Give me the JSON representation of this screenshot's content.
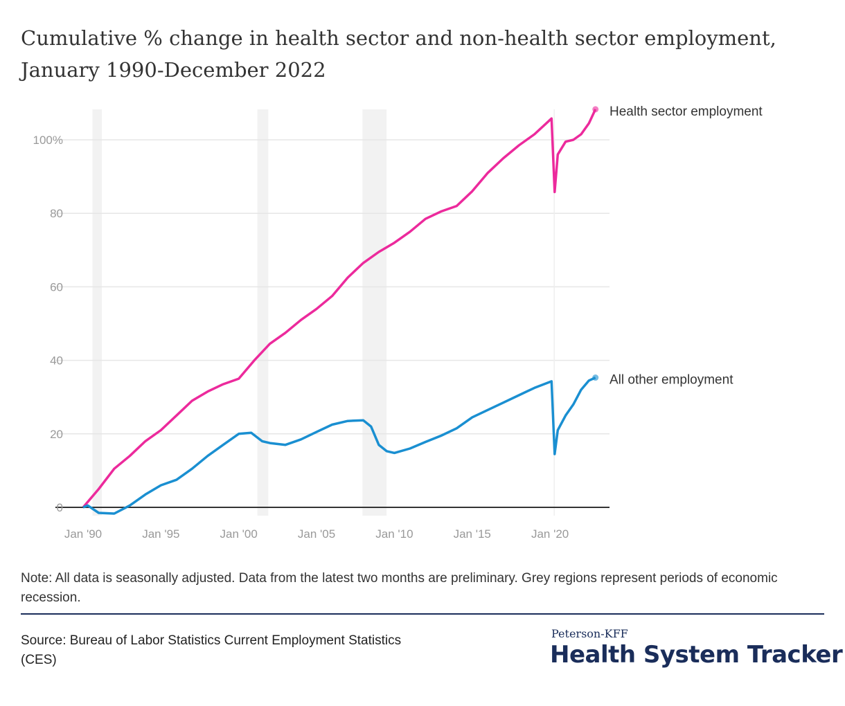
{
  "chart_data": {
    "type": "line",
    "title": "Cumulative % change in health sector and non-health sector employment, January 1990-December 2022",
    "xlabel": "",
    "ylabel": "",
    "xlim": [
      1990,
      2023
    ],
    "ylim": [
      0,
      110
    ],
    "grid": true,
    "legend": "inline-right",
    "x_ticks": [
      {
        "value": 1990,
        "label": "Jan '90"
      },
      {
        "value": 1995,
        "label": "Jan '95"
      },
      {
        "value": 2000,
        "label": "Jan '00"
      },
      {
        "value": 2005,
        "label": "Jan '05"
      },
      {
        "value": 2010,
        "label": "Jan '10"
      },
      {
        "value": 2015,
        "label": "Jan '15"
      },
      {
        "value": 2020,
        "label": "Jan '20"
      }
    ],
    "y_ticks": [
      {
        "value": 0,
        "label": "0"
      },
      {
        "value": 20,
        "label": "20"
      },
      {
        "value": 40,
        "label": "40"
      },
      {
        "value": 60,
        "label": "60"
      },
      {
        "value": 80,
        "label": "80"
      },
      {
        "value": 100,
        "label": "100%"
      }
    ],
    "recessions": [
      [
        1990.6,
        1991.2
      ],
      [
        2001.2,
        2001.9
      ],
      [
        2007.95,
        2009.5
      ]
    ],
    "series": [
      {
        "name": "Health sector employment",
        "color": "#ec2a9c",
        "x": [
          1990,
          1991,
          1992,
          1993,
          1994,
          1995,
          1996,
          1997,
          1998,
          1999,
          2000,
          2001,
          2002,
          2003,
          2004,
          2005,
          2006,
          2007,
          2008,
          2009,
          2010,
          2011,
          2012,
          2013,
          2014,
          2015,
          2016,
          2017,
          2018,
          2019,
          2020.1,
          2020.3,
          2020.5,
          2021,
          2021.5,
          2022,
          2022.5,
          2022.92
        ],
        "y": [
          0,
          5,
          10.5,
          14,
          18,
          21,
          25,
          29,
          31.5,
          33.5,
          35,
          40,
          44.5,
          47.5,
          51,
          54,
          57.5,
          62.5,
          66.5,
          69.5,
          72,
          75,
          78.5,
          80.5,
          82,
          86,
          91,
          95,
          98.5,
          101.5,
          105.8,
          85.8,
          96,
          99.5,
          100,
          101.5,
          104.5,
          108.3
        ]
      },
      {
        "name": "All other employment",
        "color": "#1a8fd1",
        "x": [
          1990,
          1990.3,
          1991,
          1992,
          1993,
          1994,
          1995,
          1996,
          1997,
          1998,
          1999,
          2000,
          2000.8,
          2001.5,
          2002,
          2003,
          2004,
          2005,
          2006,
          2007,
          2008,
          2008.5,
          2009,
          2009.5,
          2010,
          2011,
          2012,
          2013,
          2014,
          2015,
          2016,
          2017,
          2018,
          2019,
          2020.1,
          2020.3,
          2020.5,
          2021,
          2021.5,
          2022,
          2022.5,
          2022.92
        ],
        "y": [
          0,
          0.5,
          -1.5,
          -1.7,
          0.5,
          3.5,
          6,
          7.5,
          10.5,
          14,
          17,
          20,
          20.3,
          18,
          17.5,
          17,
          18.5,
          20.5,
          22.5,
          23.5,
          23.7,
          22,
          17,
          15.3,
          14.8,
          16,
          17.8,
          19.5,
          21.5,
          24.5,
          26.5,
          28.5,
          30.5,
          32.5,
          34.3,
          14.5,
          21,
          25,
          28,
          32,
          34.5,
          35.3
        ]
      }
    ]
  },
  "note": "Note: All data is seasonally adjusted. Data from the latest two months are preliminary. Grey regions represent periods of economic recession.",
  "source": "Source: Bureau of Labor Statistics Current Employment Statistics (CES)",
  "logo": {
    "small": "Peterson-KFF",
    "big": "Health System Tracker"
  }
}
